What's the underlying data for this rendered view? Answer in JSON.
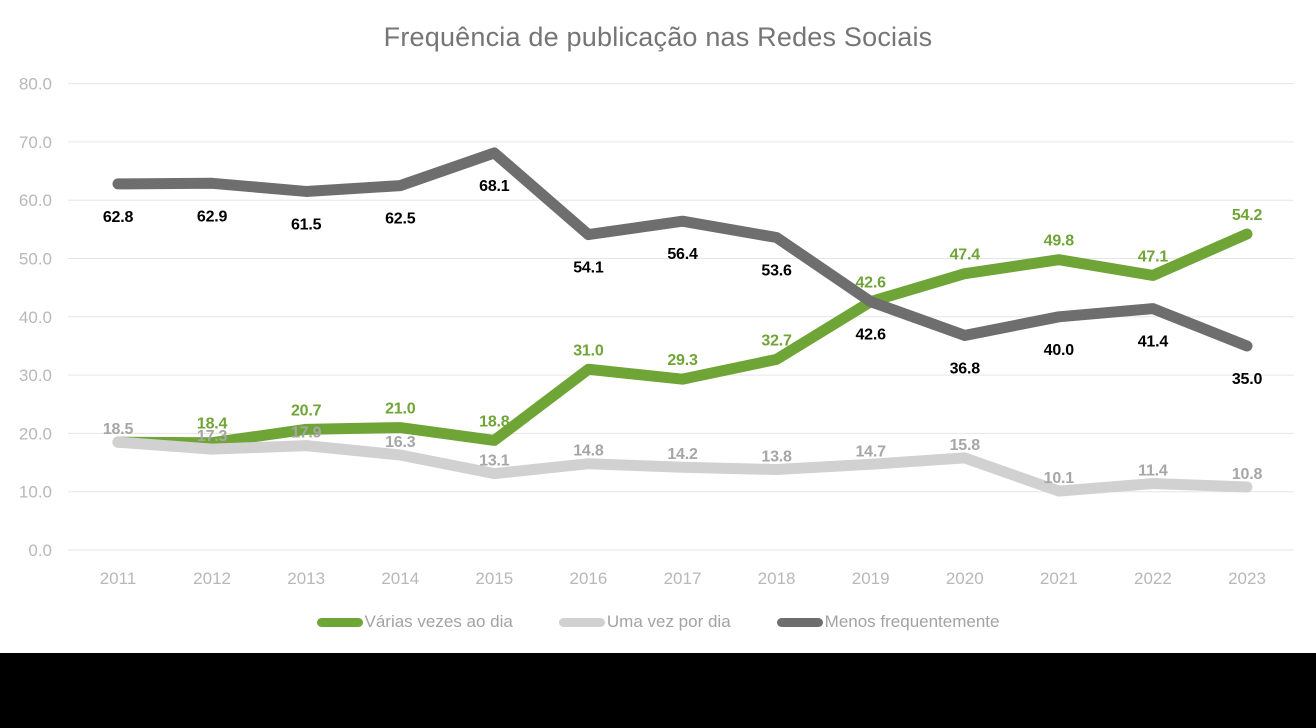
{
  "title": "Frequência de publicação nas Redes Sociais",
  "chart_data": {
    "type": "line",
    "title": "Frequência de publicação nas Redes Sociais",
    "categories": [
      "2011",
      "2012",
      "2013",
      "2014",
      "2015",
      "2016",
      "2017",
      "2018",
      "2019",
      "2020",
      "2021",
      "2022",
      "2023"
    ],
    "y_ticks": [
      "0.0",
      "10.0",
      "20.0",
      "30.0",
      "40.0",
      "50.0",
      "60.0",
      "70.0",
      "80.0"
    ],
    "ylim": [
      0,
      80
    ],
    "grid": "horizontal",
    "legend_position": "bottom",
    "value_decimals": 1,
    "series": [
      {
        "name": "Várias vezes ao dia",
        "color": "#6fa436",
        "label_color": "#6fa436",
        "label_placement": "above",
        "label_dy": -20,
        "hidden_label_indices": [
          0
        ],
        "values": [
          18.5,
          18.4,
          20.7,
          21.0,
          18.8,
          31.0,
          29.3,
          32.7,
          42.6,
          47.4,
          49.8,
          47.1,
          54.2
        ]
      },
      {
        "name": "Uma vez por dia",
        "color": "#d1d1d1",
        "label_color": "#a6a6a6",
        "label_placement": "above",
        "label_dy": -14,
        "hidden_label_indices": [],
        "values": [
          18.5,
          17.3,
          17.9,
          16.3,
          13.1,
          14.8,
          14.2,
          13.8,
          14.7,
          15.8,
          10.1,
          11.4,
          10.8
        ]
      },
      {
        "name": "Menos frequentemente",
        "color": "#6e6e6e",
        "label_color": "#000000",
        "label_placement": "below",
        "label_dy": 32,
        "hidden_label_indices": [],
        "values": [
          62.8,
          62.9,
          61.5,
          62.5,
          68.1,
          54.1,
          56.4,
          53.6,
          42.6,
          36.8,
          40.0,
          41.4,
          35.0
        ]
      }
    ]
  },
  "colors": {
    "background": "#ffffff",
    "title_text": "#757575",
    "axis_text": "#b8b8b8",
    "gridline": "#e6e6e6",
    "legend_text": "#a3a3a3",
    "footer_bar": "#000000"
  }
}
